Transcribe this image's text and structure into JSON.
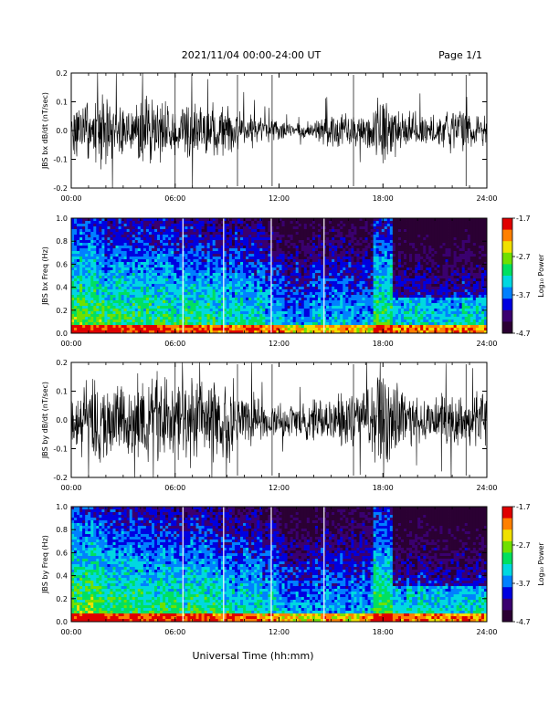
{
  "header": {
    "title": "2021/11/04  00:00-24:00 UT",
    "page": "Page 1/1"
  },
  "footer": {
    "xlabel": "Universal Time (hh:mm)"
  },
  "colorscale": {
    "stops": [
      "#2b0033",
      "#3a006f",
      "#0000e0",
      "#0080ff",
      "#00d8e0",
      "#00e060",
      "#70e000",
      "#f0e000",
      "#ff8000",
      "#e00000"
    ],
    "trace": "#000000"
  },
  "chart_data": [
    {
      "type": "line",
      "id": "bx_dbdt",
      "ylabel": "JBS bx dB/dt (nT/sec)",
      "ylim": [
        -0.2,
        0.2
      ],
      "yticks": [
        "0.2",
        "0.1",
        "0.0",
        "-0.1",
        "-0.2"
      ],
      "ytick_values": [
        0.2,
        0.1,
        0.0,
        -0.1,
        -0.2
      ],
      "xlim": [
        0,
        24
      ],
      "xticks": [
        "00:00",
        "06:00",
        "12:00",
        "18:00",
        "24:00"
      ],
      "xtick_values": [
        0,
        6,
        12,
        18,
        24
      ],
      "envelope_hours": [
        0,
        1,
        2,
        3,
        4,
        5,
        6,
        7,
        8,
        9,
        10,
        11,
        12,
        13,
        14,
        15,
        16,
        17,
        18,
        19,
        20,
        21,
        22,
        23,
        24
      ],
      "envelope_amplitude": [
        0.08,
        0.1,
        0.12,
        0.07,
        0.09,
        0.11,
        0.07,
        0.09,
        0.08,
        0.08,
        0.06,
        0.04,
        0.03,
        0.02,
        0.03,
        0.06,
        0.05,
        0.05,
        0.12,
        0.07,
        0.06,
        0.05,
        0.07,
        0.05,
        0.06
      ]
    },
    {
      "type": "heatmap",
      "id": "bx_freq",
      "ylabel": "JBS bx Freq (Hz)",
      "ylim": [
        0.0,
        1.0
      ],
      "yticks": [
        "1.0",
        "0.8",
        "0.6",
        "0.4",
        "0.2",
        "0.0"
      ],
      "ytick_values": [
        1.0,
        0.8,
        0.6,
        0.4,
        0.2,
        0.0
      ],
      "xlim": [
        0,
        24
      ],
      "xticks": [
        "00:00",
        "06:00",
        "12:00",
        "18:00",
        "24:00"
      ],
      "xtick_values": [
        0,
        6,
        12,
        18,
        24
      ],
      "colorbar_label": "Log₁₀ Power",
      "colorbar_ticks": [
        "-1.7",
        "-2.7",
        "-3.7",
        "-4.7"
      ],
      "colorbar_values": [
        -1.7,
        -2.7,
        -3.7,
        -4.7
      ],
      "zlim": [
        -4.7,
        -1.7
      ]
    },
    {
      "type": "line",
      "id": "by_dbdt",
      "ylabel": "JBS by dB/dt (nT/sec)",
      "ylim": [
        -0.2,
        0.2
      ],
      "yticks": [
        "0.2",
        "0.1",
        "0.0",
        "-0.1",
        "-0.2"
      ],
      "ytick_values": [
        0.2,
        0.1,
        0.0,
        -0.1,
        -0.2
      ],
      "xlim": [
        0,
        24
      ],
      "xticks": [
        "00:00",
        "06:00",
        "12:00",
        "18:00",
        "24:00"
      ],
      "xtick_values": [
        0,
        6,
        12,
        18,
        24
      ],
      "envelope_hours": [
        0,
        1,
        2,
        3,
        4,
        5,
        6,
        7,
        8,
        9,
        10,
        11,
        12,
        13,
        14,
        15,
        16,
        17,
        18,
        19,
        20,
        21,
        22,
        23,
        24
      ],
      "envelope_amplitude": [
        0.12,
        0.15,
        0.13,
        0.12,
        0.14,
        0.16,
        0.12,
        0.14,
        0.13,
        0.13,
        0.12,
        0.06,
        0.05,
        0.05,
        0.06,
        0.08,
        0.08,
        0.09,
        0.18,
        0.1,
        0.07,
        0.07,
        0.1,
        0.08,
        0.09
      ]
    },
    {
      "type": "heatmap",
      "id": "by_freq",
      "ylabel": "JBS by Freq (Hz)",
      "ylim": [
        0.0,
        1.0
      ],
      "yticks": [
        "1.0",
        "0.8",
        "0.6",
        "0.4",
        "0.2",
        "0.0"
      ],
      "ytick_values": [
        1.0,
        0.8,
        0.6,
        0.4,
        0.2,
        0.0
      ],
      "xlim": [
        0,
        24
      ],
      "xticks": [
        "00:00",
        "06:00",
        "12:00",
        "18:00",
        "24:00"
      ],
      "xtick_values": [
        0,
        6,
        12,
        18,
        24
      ],
      "colorbar_label": "Log₁₀ Power",
      "colorbar_ticks": [
        "-1.7",
        "-2.7",
        "-3.7",
        "-4.7"
      ],
      "colorbar_values": [
        -1.7,
        -2.7,
        -3.7,
        -4.7
      ],
      "zlim": [
        -4.7,
        -1.7
      ]
    }
  ]
}
